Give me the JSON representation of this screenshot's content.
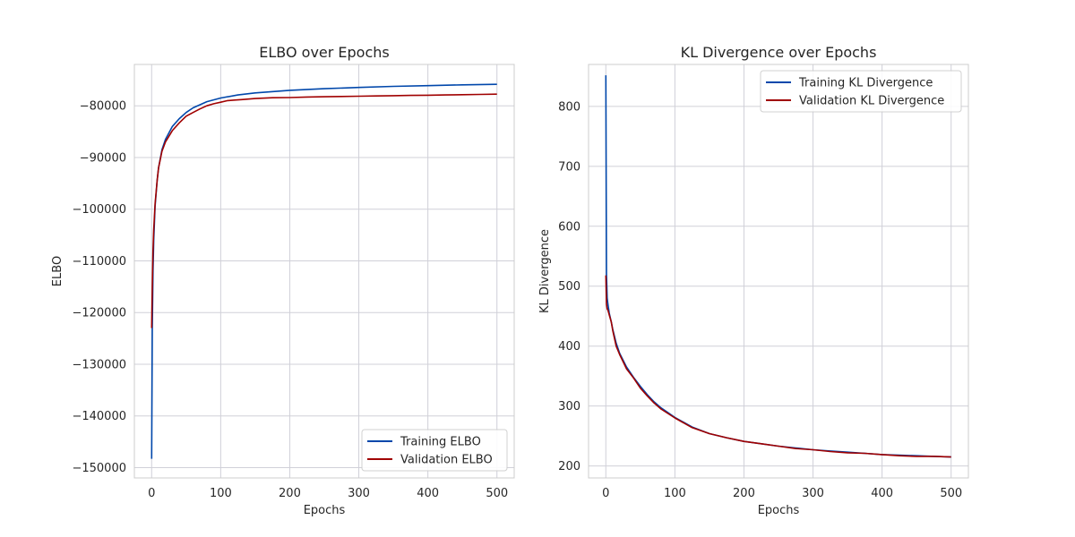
{
  "chart_data": [
    {
      "type": "line",
      "title": "ELBO over Epochs",
      "xlabel": "Epochs",
      "ylabel": "ELBO",
      "xlim": [
        -25,
        525
      ],
      "ylim": [
        -152000,
        -72000
      ],
      "xticks": [
        0,
        100,
        200,
        300,
        400,
        500
      ],
      "yticks": [
        -150000,
        -140000,
        -130000,
        -120000,
        -110000,
        -100000,
        -90000,
        -80000
      ],
      "ytick_labels": [
        "−150000",
        "−140000",
        "−130000",
        "−120000",
        "−110000",
        "−100000",
        "−90000",
        "−80000"
      ],
      "grid": true,
      "legend_position": "lower-right",
      "series": [
        {
          "name": "Training ELBO",
          "color": "#0047AB",
          "x": [
            0,
            1,
            2,
            3,
            5,
            8,
            10,
            15,
            20,
            30,
            40,
            50,
            60,
            80,
            100,
            125,
            150,
            200,
            250,
            300,
            350,
            400,
            450,
            500
          ],
          "y": [
            -148300,
            -123000,
            -112000,
            -106000,
            -99500,
            -94500,
            -92000,
            -88500,
            -86500,
            -84000,
            -82500,
            -81300,
            -80400,
            -79200,
            -78500,
            -77900,
            -77500,
            -77000,
            -76700,
            -76450,
            -76250,
            -76100,
            -75950,
            -75850
          ]
        },
        {
          "name": "Validation ELBO",
          "color": "#A00000",
          "x": [
            0,
            1,
            2,
            3,
            5,
            8,
            10,
            15,
            20,
            30,
            40,
            50,
            60,
            70,
            80,
            90,
            100,
            110,
            120,
            130,
            150,
            175,
            200,
            225,
            250,
            275,
            300,
            325,
            350,
            375,
            400,
            425,
            450,
            475,
            500
          ],
          "y": [
            -123000,
            -115000,
            -108000,
            -104000,
            -99000,
            -94500,
            -92000,
            -88800,
            -87000,
            -84800,
            -83300,
            -82000,
            -81300,
            -80600,
            -80000,
            -79600,
            -79300,
            -79000,
            -78900,
            -78800,
            -78600,
            -78450,
            -78400,
            -78300,
            -78250,
            -78200,
            -78150,
            -78100,
            -78050,
            -78000,
            -77950,
            -77900,
            -77850,
            -77800,
            -77750
          ]
        }
      ]
    },
    {
      "type": "line",
      "title": "KL Divergence over Epochs",
      "xlabel": "Epochs",
      "ylabel": "KL Divergence",
      "xlim": [
        -25,
        525
      ],
      "ylim": [
        180,
        870
      ],
      "xticks": [
        0,
        100,
        200,
        300,
        400,
        500
      ],
      "yticks": [
        200,
        300,
        400,
        500,
        600,
        700,
        800
      ],
      "ytick_labels": [
        "200",
        "300",
        "400",
        "500",
        "600",
        "700",
        "800"
      ],
      "grid": true,
      "legend_position": "top-right",
      "series": [
        {
          "name": "Training KL Divergence",
          "color": "#0047AB",
          "x": [
            0,
            1,
            2,
            3,
            5,
            8,
            10,
            15,
            20,
            30,
            40,
            50,
            60,
            70,
            80,
            100,
            125,
            150,
            175,
            200,
            225,
            250,
            275,
            300,
            325,
            350,
            375,
            400,
            425,
            450,
            475,
            500
          ],
          "y": [
            852,
            520,
            480,
            470,
            455,
            440,
            428,
            405,
            388,
            365,
            348,
            333,
            319,
            307,
            297,
            281,
            265,
            254,
            247,
            241,
            237,
            233,
            230,
            227,
            225,
            223,
            221,
            219,
            218,
            217,
            216,
            215
          ]
        },
        {
          "name": "Validation KL Divergence",
          "color": "#A00000",
          "x": [
            0,
            1,
            2,
            3,
            5,
            8,
            10,
            15,
            20,
            30,
            40,
            50,
            60,
            70,
            80,
            100,
            125,
            150,
            175,
            200,
            225,
            250,
            275,
            300,
            325,
            350,
            375,
            400,
            425,
            450,
            475,
            500
          ],
          "y": [
            518,
            470,
            462,
            460,
            452,
            440,
            426,
            400,
            386,
            362,
            347,
            330,
            317,
            305,
            295,
            280,
            264,
            254,
            247,
            241,
            237,
            233,
            229,
            227,
            224,
            222,
            221,
            219,
            217,
            216,
            216,
            215
          ]
        }
      ]
    }
  ]
}
